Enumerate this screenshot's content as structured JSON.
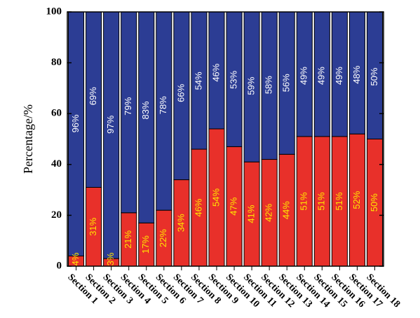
{
  "chart_data": {
    "type": "bar",
    "stacked": true,
    "categories": [
      "Section 1",
      "Section 2",
      "Section 3",
      "Section 4",
      "Section 5",
      "Section 6",
      "Section 7",
      "Section 8",
      "Section 9",
      "Section 10",
      "Section 11",
      "Section 12",
      "Section 13",
      "Section 14",
      "Section 15",
      "Section 16",
      "Section 17",
      "Section 18"
    ],
    "series": [
      {
        "color": "#e8302a",
        "label_color": "#ffe600",
        "values": [
          4,
          31,
          3,
          21,
          17,
          22,
          34,
          46,
          54,
          47,
          41,
          42,
          44,
          51,
          51,
          51,
          52,
          50
        ],
        "labels": [
          "4%",
          "31%",
          "3%",
          "21%",
          "17%",
          "22%",
          "34%",
          "46%",
          "54%",
          "47%",
          "41%",
          "42%",
          "44%",
          "51%",
          "51%",
          "51%",
          "52%",
          "50%"
        ]
      },
      {
        "color": "#2c3d94",
        "label_color": "#ffffff",
        "values": [
          96,
          69,
          97,
          79,
          83,
          78,
          66,
          54,
          46,
          53,
          59,
          58,
          56,
          49,
          49,
          49,
          48,
          50
        ],
        "labels": [
          "96%",
          "69%",
          "97%",
          "79%",
          "83%",
          "78%",
          "66%",
          "54%",
          "46%",
          "53%",
          "59%",
          "58%",
          "56%",
          "49%",
          "49%",
          "49%",
          "48%",
          "50%"
        ]
      }
    ],
    "title": "",
    "xlabel": "",
    "ylabel": "Percentage/%",
    "ylim": [
      0,
      100
    ],
    "yticks": [
      0,
      20,
      40,
      60,
      80,
      100
    ],
    "grid": false,
    "legend": "none"
  }
}
